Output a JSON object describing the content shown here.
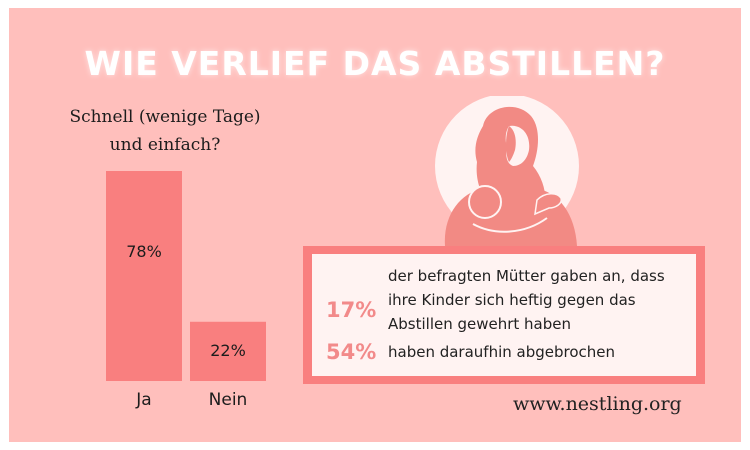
{
  "title": "WIE VERLIEF DAS ABSTILLEN?",
  "chart_data": {
    "type": "bar",
    "title": "Schnell (wenige Tage) und einfach?",
    "categories": [
      "Ja",
      "Nein"
    ],
    "values": [
      78,
      22
    ],
    "value_labels": [
      "78%",
      "22%"
    ],
    "ylim": [
      0,
      78
    ],
    "bar_color": "#f97f7f",
    "grid": false
  },
  "question_lines": [
    "Schnell (wenige Tage)",
    "und einfach?"
  ],
  "stats": [
    {
      "percent": "17%",
      "lines": [
        "der befragten Mütter gaben an, dass",
        "ihre Kinder sich heftig gegen das",
        "Abstillen gewehrt haben"
      ]
    },
    {
      "percent": "54%",
      "lines": [
        "haben daraufhin abgebrochen"
      ]
    }
  ],
  "website": "www.nestling.org",
  "colors": {
    "background": "#ffbfbc",
    "accent": "#f97f7f",
    "percent_text": "#f28a8a",
    "illustration": "#f28a84"
  },
  "illustration_icon": "crying-mother-with-child-icon"
}
